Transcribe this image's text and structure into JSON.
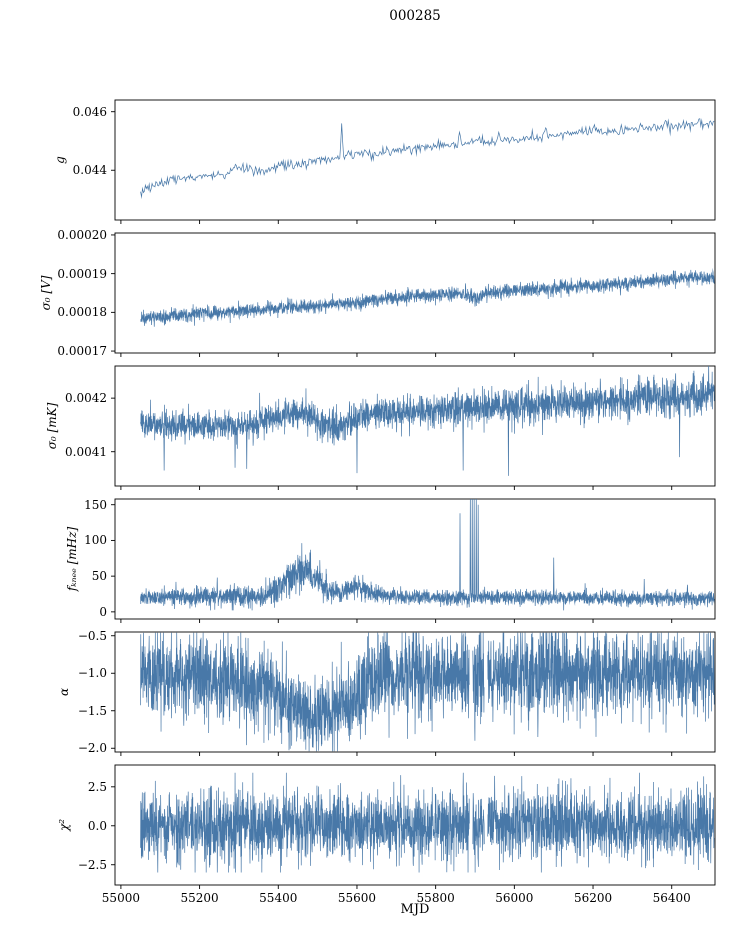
{
  "chart_data": {
    "type": "line",
    "title": "000285",
    "xlabel": "MJD",
    "line_color": "#4878a8",
    "grid": false,
    "legend": "none",
    "xlim": [
      54985,
      56510
    ],
    "x_data_range": [
      55050,
      56508
    ],
    "x_ticks": [
      55000,
      55200,
      55400,
      55600,
      55800,
      56000,
      56200,
      56400
    ],
    "x_tick_labels": [
      "55000",
      "55200",
      "55400",
      "55600",
      "55800",
      "56000",
      "56200",
      "56400"
    ],
    "subplots": [
      {
        "ylabel": "g",
        "ylim": [
          0.0423,
          0.0464
        ],
        "yticks": [
          {
            "v": 0.044,
            "label": "0.044"
          },
          {
            "v": 0.046,
            "label": "0.046"
          }
        ],
        "n": 600,
        "trend": [
          [
            55050,
            0.04325
          ],
          [
            55080,
            0.04345
          ],
          [
            55120,
            0.0436
          ],
          [
            55200,
            0.04378
          ],
          [
            55280,
            0.0439
          ],
          [
            55300,
            0.04405
          ],
          [
            55360,
            0.04398
          ],
          [
            55400,
            0.0442
          ],
          [
            55440,
            0.04415
          ],
          [
            55500,
            0.04435
          ],
          [
            55560,
            0.04442
          ],
          [
            55600,
            0.0446
          ],
          [
            55640,
            0.04455
          ],
          [
            55700,
            0.0447
          ],
          [
            55760,
            0.04478
          ],
          [
            55800,
            0.04482
          ],
          [
            55850,
            0.04488
          ],
          [
            55900,
            0.045
          ],
          [
            55950,
            0.04495
          ],
          [
            56000,
            0.04505
          ],
          [
            56050,
            0.0451
          ],
          [
            56100,
            0.0452
          ],
          [
            56150,
            0.04525
          ],
          [
            56200,
            0.04538
          ],
          [
            56250,
            0.04535
          ],
          [
            56300,
            0.0454
          ],
          [
            56350,
            0.04545
          ],
          [
            56400,
            0.04552
          ],
          [
            56450,
            0.04555
          ],
          [
            56508,
            0.0456
          ]
        ],
        "sigma": [
          [
            55050,
            8e-05
          ],
          [
            56508,
            8e-05
          ]
        ],
        "spikes": [
          [
            55290,
            0.0442
          ],
          [
            55560,
            0.0456
          ],
          [
            55620,
            0.0447
          ],
          [
            55860,
            0.0453
          ],
          [
            55960,
            0.0453
          ],
          [
            56080,
            0.04545
          ],
          [
            56320,
            0.0456
          ],
          [
            56470,
            0.04575
          ]
        ]
      },
      {
        "ylabel": "σ₀ [V]",
        "ylim": [
          0.0001695,
          0.0002005
        ],
        "yticks": [
          {
            "v": 0.00017,
            "label": "0.00017"
          },
          {
            "v": 0.00018,
            "label": "0.00018"
          },
          {
            "v": 0.00019,
            "label": "0.00019"
          },
          {
            "v": 0.0002,
            "label": "0.00020"
          }
        ],
        "n": 2600,
        "trend": [
          [
            55050,
            0.0001783
          ],
          [
            55150,
            0.0001793
          ],
          [
            55250,
            0.00018
          ],
          [
            55350,
            0.0001807
          ],
          [
            55420,
            0.0001812
          ],
          [
            55500,
            0.0001818
          ],
          [
            55570,
            0.0001823
          ],
          [
            55640,
            0.0001833
          ],
          [
            55720,
            0.000184
          ],
          [
            55800,
            0.0001845
          ],
          [
            55860,
            0.0001849
          ],
          [
            55885,
            0.0001842
          ],
          [
            55905,
            0.0001832
          ],
          [
            55925,
            0.000185
          ],
          [
            56000,
            0.0001856
          ],
          [
            56080,
            0.000186
          ],
          [
            56160,
            0.0001866
          ],
          [
            56240,
            0.0001872
          ],
          [
            56320,
            0.0001878
          ],
          [
            56400,
            0.0001886
          ],
          [
            56508,
            0.0001892
          ]
        ],
        "sigma": [
          [
            55050,
            9e-07
          ],
          [
            56508,
            9e-07
          ]
        ],
        "spikes": [
          [
            55170,
            0.0001775
          ],
          [
            55430,
            0.0001835
          ],
          [
            55900,
            0.0001815
          ],
          [
            56130,
            0.0001885
          ]
        ]
      },
      {
        "ylabel": "σ₀ [mK]",
        "ylim": [
          0.004036,
          0.00426
        ],
        "yticks": [
          {
            "v": 0.0041,
            "label": "0.0041"
          },
          {
            "v": 0.0042,
            "label": "0.0042"
          }
        ],
        "n": 2800,
        "trend": [
          [
            55050,
            0.004152
          ],
          [
            55150,
            0.004148
          ],
          [
            55250,
            0.00415
          ],
          [
            55330,
            0.004152
          ],
          [
            55400,
            0.004162
          ],
          [
            55430,
            0.004172
          ],
          [
            55460,
            0.004168
          ],
          [
            55520,
            0.004152
          ],
          [
            55570,
            0.00415
          ],
          [
            55600,
            0.004165
          ],
          [
            55640,
            0.004172
          ],
          [
            55700,
            0.004172
          ],
          [
            55780,
            0.004176
          ],
          [
            55860,
            0.00418
          ],
          [
            55940,
            0.004183
          ],
          [
            56020,
            0.004186
          ],
          [
            56100,
            0.004188
          ],
          [
            56180,
            0.004192
          ],
          [
            56260,
            0.004196
          ],
          [
            56340,
            0.0042
          ],
          [
            56420,
            0.004203
          ],
          [
            56508,
            0.004205
          ]
        ],
        "sigma": [
          [
            55050,
            1.3e-05
          ],
          [
            55400,
            1.5e-05
          ],
          [
            55700,
            1.6e-05
          ],
          [
            56100,
            1.7e-05
          ],
          [
            56508,
            1.8e-05
          ]
        ],
        "spikes": [
          [
            55110,
            0.004065
          ],
          [
            55290,
            0.00407
          ],
          [
            55320,
            0.004068
          ],
          [
            55600,
            0.00406
          ],
          [
            55870,
            0.004065
          ],
          [
            55985,
            0.004055
          ],
          [
            56420,
            0.00409
          ]
        ]
      },
      {
        "ylabel": "fₖₙₑₑ [mHz]",
        "ylim": [
          -10,
          158
        ],
        "yticks": [
          {
            "v": 0,
            "label": "0"
          },
          {
            "v": 50,
            "label": "50"
          },
          {
            "v": 100,
            "label": "100"
          },
          {
            "v": 150,
            "label": "150"
          }
        ],
        "n": 3000,
        "trend": [
          [
            55050,
            20
          ],
          [
            55200,
            21
          ],
          [
            55330,
            22
          ],
          [
            55380,
            26
          ],
          [
            55410,
            38
          ],
          [
            55440,
            55
          ],
          [
            55470,
            58
          ],
          [
            55500,
            45
          ],
          [
            55530,
            30
          ],
          [
            55560,
            26
          ],
          [
            55580,
            33
          ],
          [
            55600,
            38
          ],
          [
            55620,
            30
          ],
          [
            55660,
            24
          ],
          [
            55720,
            21
          ],
          [
            55800,
            20
          ],
          [
            56000,
            20
          ],
          [
            56200,
            19
          ],
          [
            56508,
            19
          ]
        ],
        "sigma": [
          [
            55050,
            5
          ],
          [
            55380,
            8
          ],
          [
            55440,
            13
          ],
          [
            55500,
            11
          ],
          [
            55560,
            7
          ],
          [
            55620,
            8
          ],
          [
            55680,
            5
          ],
          [
            56508,
            5
          ]
        ],
        "spikes": [
          [
            55140,
            42
          ],
          [
            55245,
            48
          ],
          [
            55862,
            138
          ],
          [
            55888,
            165
          ],
          [
            55893,
            172
          ],
          [
            55898,
            160
          ],
          [
            55903,
            168
          ],
          [
            55908,
            150
          ],
          [
            56100,
            76
          ],
          [
            56180,
            40
          ],
          [
            56330,
            46
          ],
          [
            56440,
            38
          ]
        ],
        "clip": [
          2,
          175
        ]
      },
      {
        "ylabel": "α",
        "ylim": [
          -2.05,
          -0.45
        ],
        "yticks": [
          {
            "v": -0.5,
            "label": "−0.5"
          },
          {
            "v": -1.0,
            "label": "−1.0"
          },
          {
            "v": -1.5,
            "label": "−1.5"
          },
          {
            "v": -2.0,
            "label": "−2.0"
          }
        ],
        "n": 3000,
        "trend": [
          [
            55050,
            -1.02
          ],
          [
            55200,
            -1.05
          ],
          [
            55300,
            -1.1
          ],
          [
            55380,
            -1.2
          ],
          [
            55420,
            -1.35
          ],
          [
            55450,
            -1.5
          ],
          [
            55480,
            -1.55
          ],
          [
            55520,
            -1.55
          ],
          [
            55560,
            -1.45
          ],
          [
            55600,
            -1.3
          ],
          [
            55630,
            -1.1
          ],
          [
            55700,
            -1.02
          ],
          [
            56508,
            -1.0
          ]
        ],
        "sigma": [
          [
            55050,
            0.27
          ],
          [
            55380,
            0.28
          ],
          [
            55450,
            0.25
          ],
          [
            55600,
            0.3
          ],
          [
            55700,
            0.27
          ],
          [
            56508,
            0.28
          ]
        ],
        "spikes": [
          [
            55160,
            -1.7
          ],
          [
            55900,
            -1.9
          ],
          [
            56060,
            -1.85
          ]
        ],
        "gaps": [
          [
            55886,
            55894
          ],
          [
            55924,
            55932
          ]
        ],
        "clip": [
          -2.04,
          -0.46
        ]
      },
      {
        "ylabel": "χ²",
        "ylim": [
          -3.8,
          3.9
        ],
        "yticks": [
          {
            "v": -2.5,
            "label": "−2.5"
          },
          {
            "v": 0.0,
            "label": "0.0"
          },
          {
            "v": 2.5,
            "label": "2.5"
          }
        ],
        "n": 3000,
        "trend": [
          [
            55050,
            0
          ],
          [
            56508,
            0
          ]
        ],
        "sigma": [
          [
            55050,
            1.1
          ],
          [
            56508,
            1.1
          ]
        ],
        "spikes": [
          [
            55870,
            3.4
          ],
          [
            55950,
            3.2
          ]
        ],
        "gaps": [
          [
            55886,
            55894
          ],
          [
            55924,
            55932
          ]
        ],
        "clip": [
          -3.0,
          3.4
        ]
      }
    ]
  }
}
